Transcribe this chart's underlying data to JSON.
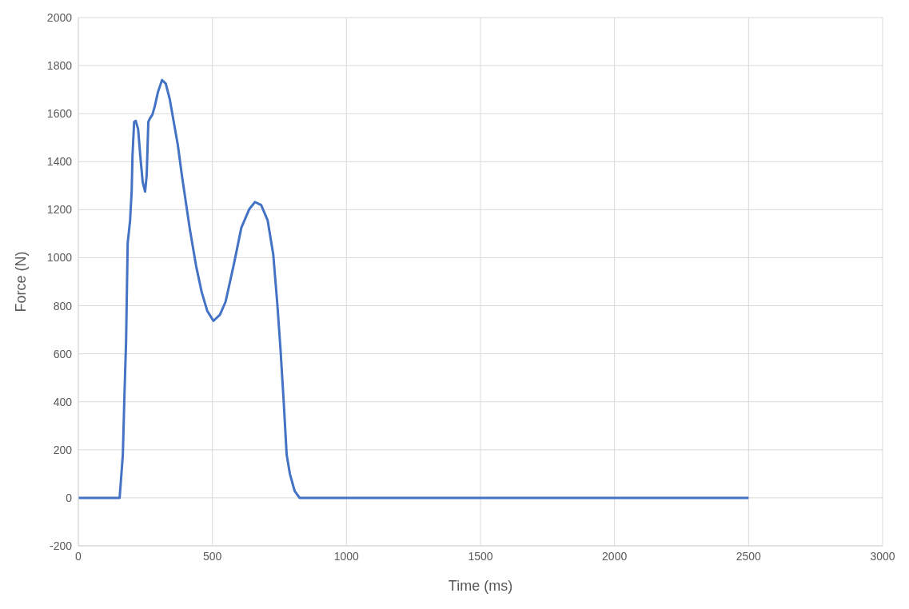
{
  "chart_data": {
    "type": "line",
    "xlabel": "Time (ms)",
    "ylabel": "Force (N)",
    "x": [
      0,
      154,
      166,
      172,
      178,
      184,
      193,
      199,
      202,
      208,
      214,
      223,
      231,
      240,
      249,
      255,
      261,
      267,
      276,
      285,
      297,
      312,
      326,
      341,
      356,
      371,
      386,
      415,
      439,
      460,
      481,
      504,
      528,
      549,
      579,
      608,
      638,
      659,
      682,
      706,
      727,
      742,
      754,
      766,
      777,
      789,
      807,
      825,
      1000,
      1500,
      2000,
      2500
    ],
    "series": [
      {
        "color": "#4472c4",
        "values": [
          0,
          0,
          180,
          430,
          650,
          1060,
          1155,
          1280,
          1425,
          1565,
          1570,
          1535,
          1425,
          1315,
          1275,
          1345,
          1565,
          1580,
          1595,
          1630,
          1690,
          1740,
          1725,
          1660,
          1565,
          1470,
          1345,
          1125,
          967,
          857,
          778,
          737,
          762,
          816,
          967,
          1125,
          1203,
          1232,
          1219,
          1156,
          1014,
          810,
          620,
          400,
          180,
          100,
          28,
          0,
          0,
          0,
          0,
          0
        ]
      }
    ],
    "xlim": [
      0,
      3000
    ],
    "xticks": [
      0,
      500,
      1000,
      1500,
      2000,
      2500,
      3000
    ],
    "ylim": [
      -200,
      2000
    ],
    "yticks": [
      -200,
      0,
      200,
      400,
      600,
      800,
      1000,
      1200,
      1400,
      1600,
      1800,
      2000
    ],
    "grid": true,
    "marker": "none",
    "line_style": "solid"
  }
}
